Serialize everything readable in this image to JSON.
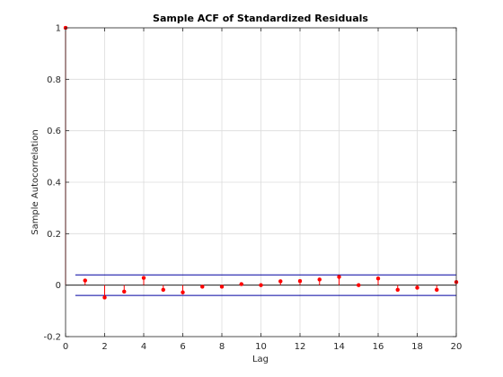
{
  "chart_data": {
    "type": "stem",
    "title": "Sample ACF of Standardized Residuals",
    "xlabel": "Lag",
    "ylabel": "Sample Autocorrelation",
    "xlim": [
      0,
      20
    ],
    "ylim": [
      -0.2,
      1
    ],
    "xticks": [
      "0",
      "2",
      "4",
      "6",
      "8",
      "10",
      "12",
      "14",
      "16",
      "18",
      "20"
    ],
    "yticks": [
      "-0.2",
      "0",
      "0.2",
      "0.4",
      "0.6",
      "0.8",
      "1"
    ],
    "grid": true,
    "series": [
      {
        "x": [
          0,
          1,
          2,
          3,
          4,
          5,
          6,
          7,
          8,
          9,
          10,
          11,
          12,
          13,
          14,
          15,
          16,
          17,
          18,
          19,
          20
        ],
        "y": [
          1.0,
          0.018,
          -0.048,
          -0.025,
          0.028,
          -0.018,
          -0.028,
          -0.006,
          -0.006,
          0.004,
          0.0,
          0.015,
          0.016,
          0.022,
          0.032,
          0.0,
          0.026,
          -0.018,
          -0.01,
          -0.018,
          0.012
        ]
      }
    ],
    "confidence_bounds": [
      0.04,
      -0.04
    ],
    "colors": {
      "stem": "#ff0000",
      "marker": "#ff0000",
      "bounds": "#0000a0",
      "grid": "#dcdcdc",
      "axis": "#262626"
    }
  }
}
